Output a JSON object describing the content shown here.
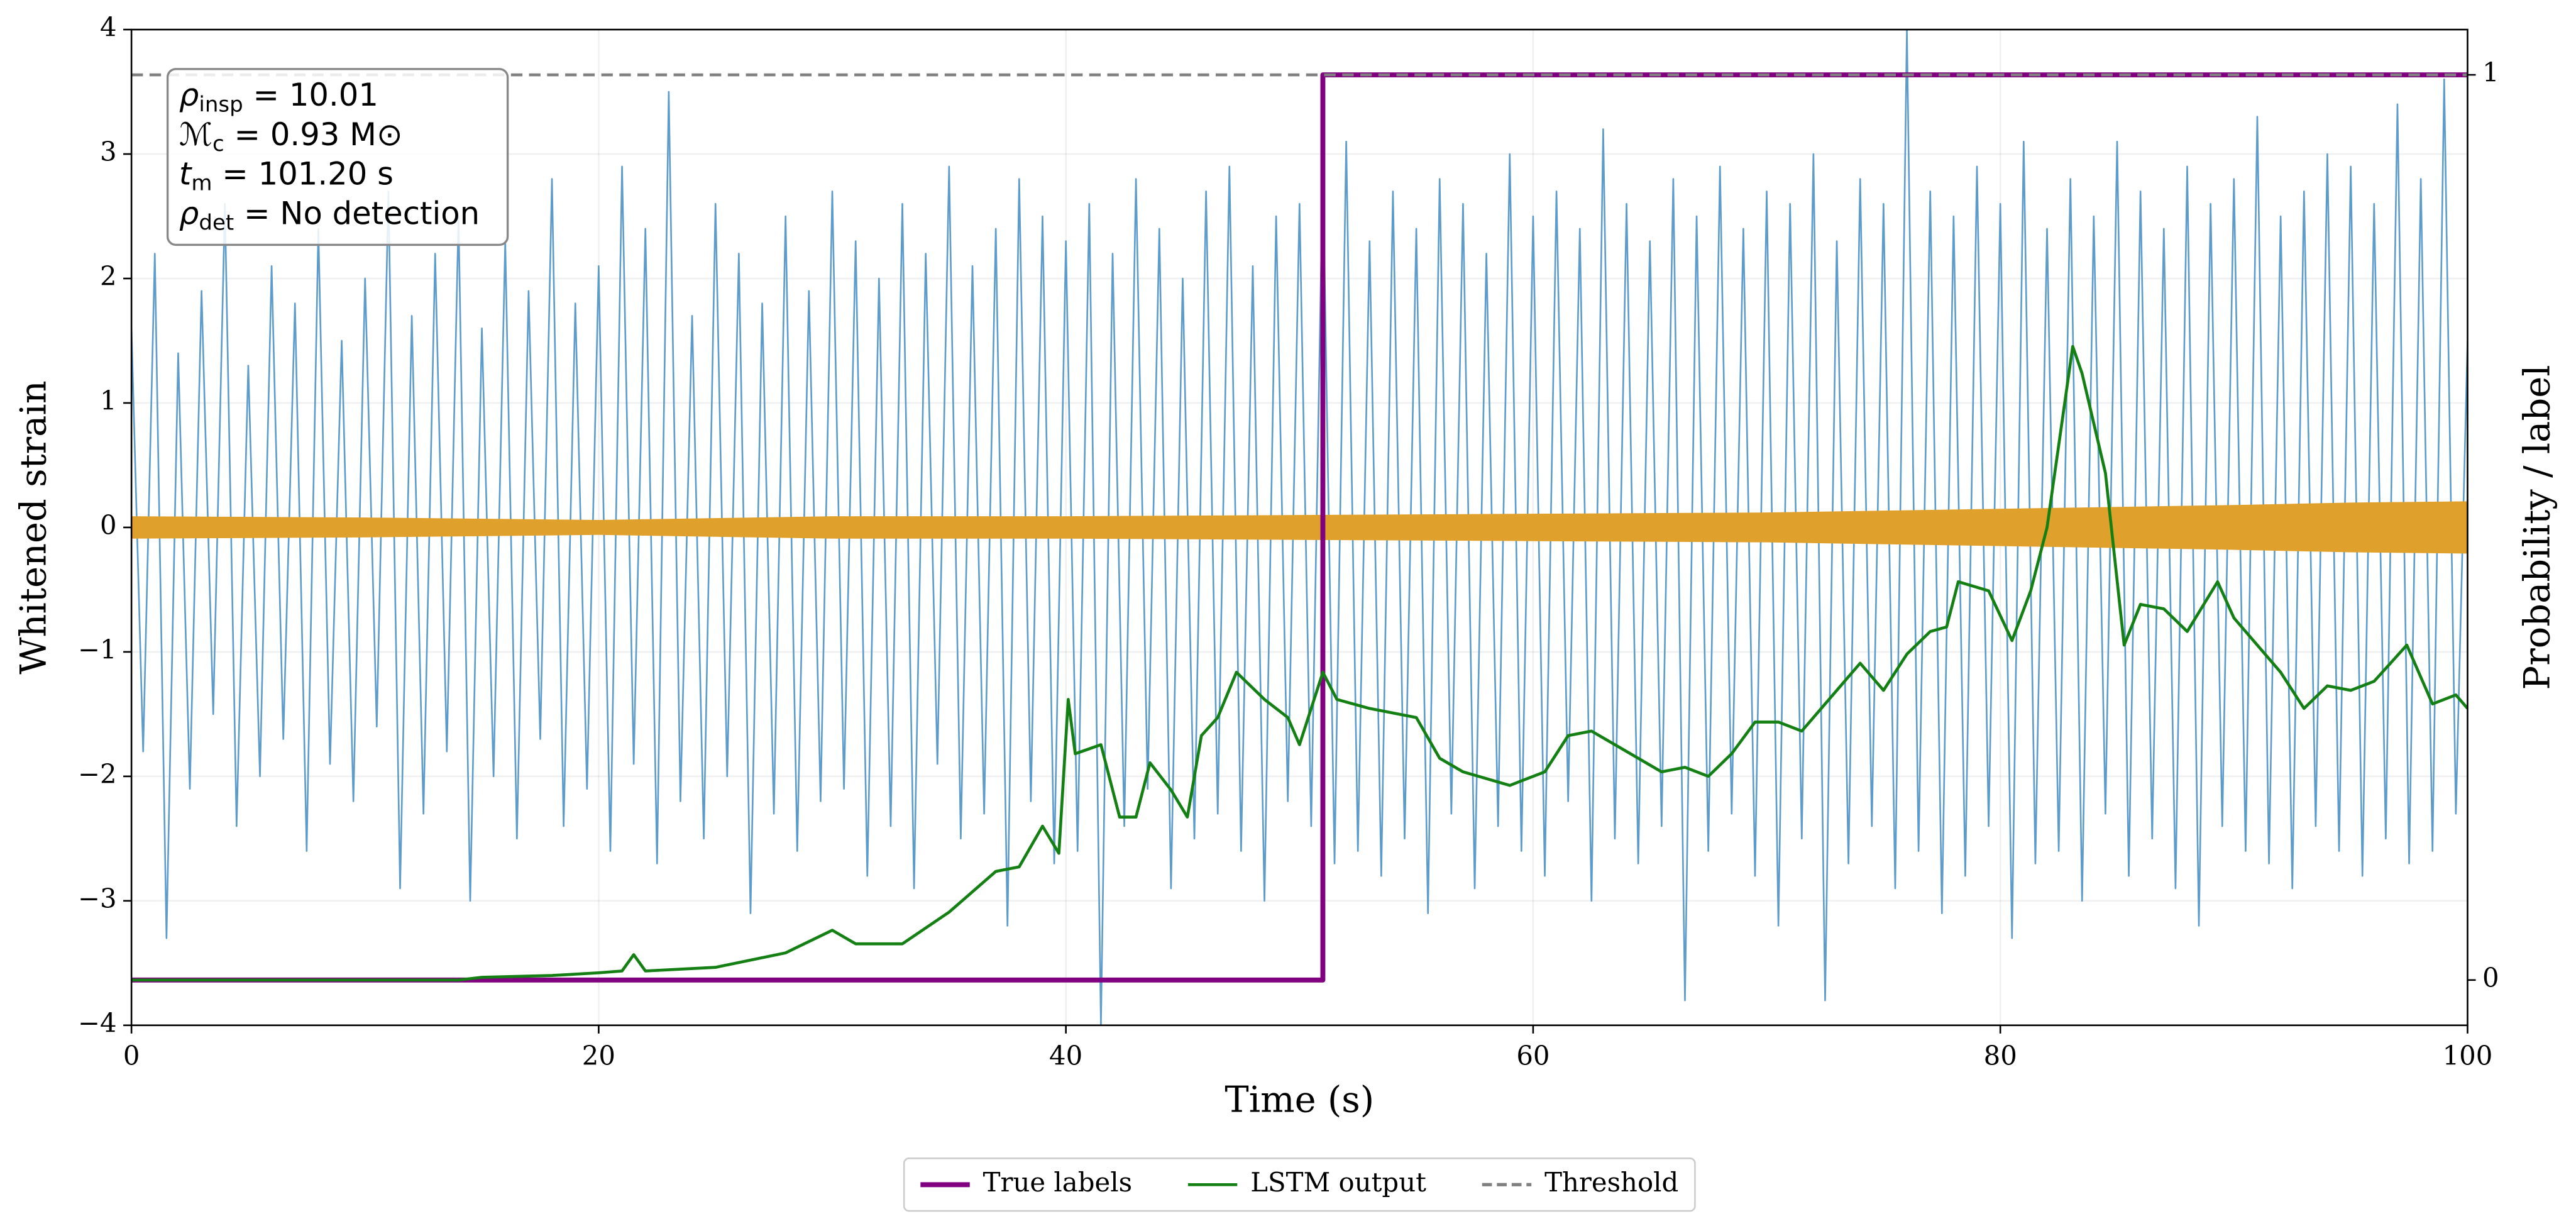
{
  "chart_data": {
    "type": "line",
    "xlabel": "Time (s)",
    "ylabel": "Whitened strain",
    "y2label": "Probability / label",
    "xlim": [
      0,
      100
    ],
    "xticks": [
      0,
      20,
      40,
      60,
      80,
      100
    ],
    "ylim": [
      -4,
      4
    ],
    "yticks": [
      {
        "value": -4,
        "label": "−4"
      },
      {
        "value": -3,
        "label": "−3"
      },
      {
        "value": -2,
        "label": "−2"
      },
      {
        "value": -1,
        "label": "−1"
      },
      0,
      1,
      2,
      3,
      4
    ],
    "y2lim": [
      -0.05,
      1.05
    ],
    "y2ticks": [
      0,
      1
    ],
    "grid": true,
    "legend": "lower center outside",
    "annotation": [
      {
        "main": "ρ",
        "sub": "insp",
        "rest": " = 10.01"
      },
      {
        "main": "ℳ",
        "sub": "c",
        "rest": " = 0.93 M⊙"
      },
      {
        "main": "t",
        "sub": "m",
        "rest": " = 101.20 s"
      },
      {
        "main": "ρ",
        "sub": "det",
        "rest": " = No detection"
      }
    ],
    "series": [
      {
        "style": "line",
        "color": "#5497c7",
        "x": [
          0,
          0.5,
          1,
          1.5,
          2,
          2.5,
          3,
          3.5,
          4,
          4.5,
          5,
          5.5,
          6,
          6.5,
          7,
          7.5,
          8,
          8.5,
          9,
          9.5,
          10,
          10.5,
          11,
          11.5,
          12,
          12.5,
          13,
          13.5,
          14,
          14.5,
          15,
          15.5,
          16,
          16.5,
          17,
          17.5,
          18,
          18.5,
          19,
          19.5,
          20,
          20.5,
          21,
          21.5,
          22,
          22.5,
          23,
          23.5,
          24,
          24.5,
          25,
          25.5,
          26,
          26.5,
          27,
          27.5,
          28,
          28.5,
          29,
          29.5,
          30,
          30.5,
          31,
          31.5,
          32,
          32.5,
          33,
          33.5,
          34,
          34.5,
          35,
          35.5,
          36,
          36.5,
          37,
          37.5,
          38,
          38.5,
          39,
          39.5,
          40,
          40.5,
          41,
          41.5,
          42,
          42.5,
          43,
          43.5,
          44,
          44.5,
          45,
          45.5,
          46,
          46.5,
          47,
          47.5,
          48,
          48.5,
          49,
          49.5,
          50,
          50.5,
          51,
          51.5,
          52,
          52.5,
          53,
          53.5,
          54,
          54.5,
          55,
          55.5,
          56,
          56.5,
          57,
          57.5,
          58,
          58.5,
          59,
          59.5,
          60,
          60.5,
          61,
          61.5,
          62,
          62.5,
          63,
          63.5,
          64,
          64.5,
          65,
          65.5,
          66,
          66.5,
          67,
          67.5,
          68,
          68.5,
          69,
          69.5,
          70,
          70.5,
          71,
          71.5,
          72,
          72.5,
          73,
          73.5,
          74,
          74.5,
          75,
          75.5,
          76,
          76.5,
          77,
          77.5,
          78,
          78.5,
          79,
          79.5,
          80,
          80.5,
          81,
          81.5,
          82,
          82.5,
          83,
          83.5,
          84,
          84.5,
          85,
          85.5,
          86,
          86.5,
          87,
          87.5,
          88,
          88.5,
          89,
          89.5,
          90,
          90.5,
          91,
          91.5,
          92,
          92.5,
          93,
          93.5,
          94,
          94.5,
          95,
          95.5,
          96,
          96.5,
          97,
          97.5,
          98,
          98.5,
          99,
          99.5,
          100
        ],
        "values": [
          1.6,
          -1.8,
          2.2,
          -3.3,
          1.4,
          -2.1,
          1.9,
          -1.5,
          2.6,
          -2.4,
          1.3,
          -2.0,
          2.1,
          -1.7,
          1.8,
          -2.6,
          2.4,
          -1.9,
          1.5,
          -2.2,
          2.0,
          -1.6,
          2.7,
          -2.9,
          1.7,
          -2.3,
          2.2,
          -1.8,
          2.5,
          -3.0,
          1.6,
          -2.0,
          2.3,
          -2.5,
          1.9,
          -1.7,
          2.8,
          -2.4,
          1.8,
          -2.1,
          2.1,
          -2.6,
          2.9,
          -1.9,
          2.4,
          -2.7,
          3.5,
          -2.2,
          1.7,
          -2.5,
          2.6,
          -2.0,
          2.2,
          -3.1,
          1.8,
          -2.3,
          2.5,
          -2.6,
          1.9,
          -2.2,
          2.7,
          -2.1,
          2.3,
          -2.8,
          2.0,
          -2.4,
          2.6,
          -2.9,
          2.2,
          -1.9,
          2.9,
          -2.5,
          2.1,
          -2.3,
          2.4,
          -3.2,
          2.8,
          -2.2,
          2.5,
          -2.7,
          2.3,
          -2.6,
          2.6,
          -4.0,
          2.2,
          -2.4,
          2.8,
          -2.1,
          2.4,
          -2.9,
          2.0,
          -2.5,
          2.7,
          -2.3,
          2.9,
          -2.6,
          2.1,
          -3.0,
          2.5,
          -2.2,
          2.6,
          -2.4,
          2.9,
          -2.7,
          3.1,
          -2.6,
          2.3,
          -2.8,
          2.7,
          -2.5,
          2.4,
          -3.1,
          2.8,
          -2.3,
          2.6,
          -2.9,
          2.2,
          -2.4,
          3.0,
          -2.6,
          2.5,
          -2.8,
          2.7,
          -2.2,
          2.4,
          -3.0,
          3.2,
          -2.5,
          2.6,
          -2.7,
          2.3,
          -2.4,
          2.8,
          -3.8,
          2.5,
          -2.6,
          2.9,
          -2.3,
          2.4,
          -2.8,
          2.7,
          -3.2,
          2.6,
          -2.5,
          3.0,
          -3.8,
          2.3,
          -2.7,
          2.8,
          -2.4,
          2.6,
          -2.9,
          4.0,
          -2.6,
          2.7,
          -3.1,
          2.5,
          -2.8,
          2.9,
          -2.4,
          2.6,
          -3.3,
          3.1,
          -2.7,
          2.4,
          -2.6,
          2.8,
          -3.0,
          2.5,
          -2.3,
          3.1,
          -2.8,
          2.7,
          -2.5,
          2.4,
          -2.9,
          2.9,
          -3.2,
          2.6,
          -2.4,
          2.8,
          -2.6,
          3.3,
          -2.7,
          2.5,
          -2.9,
          2.7,
          -2.4,
          3.0,
          -2.6,
          2.9,
          -2.8,
          2.6,
          -2.5,
          3.4,
          -2.7,
          2.8,
          -2.6,
          3.6,
          -2.3,
          1.5
        ]
      },
      {
        "style": "area",
        "color": "#e0a02c",
        "x": [
          0,
          10,
          20,
          30,
          40,
          50,
          60,
          70,
          80,
          90,
          95,
          100
        ],
        "upper": [
          0.09,
          0.08,
          0.06,
          0.09,
          0.09,
          0.1,
          0.11,
          0.12,
          0.15,
          0.18,
          0.2,
          0.21
        ],
        "lower": [
          -0.09,
          -0.08,
          -0.06,
          -0.09,
          -0.09,
          -0.1,
          -0.11,
          -0.12,
          -0.15,
          -0.18,
          -0.2,
          -0.21
        ]
      },
      {
        "name": "True labels",
        "style": "line",
        "color": "#800080",
        "axis": "y2",
        "x": [
          0,
          51,
          51,
          100
        ],
        "values": [
          0,
          0,
          1,
          1
        ]
      },
      {
        "name": "LSTM output",
        "style": "line",
        "color": "#148014",
        "axis": "y2",
        "x": [
          0,
          5,
          10,
          14,
          15,
          18,
          20,
          21,
          21.5,
          22,
          25,
          28,
          30,
          31,
          33,
          35,
          37,
          38,
          39,
          39.7,
          40.1,
          40.4,
          41.5,
          42.3,
          43,
          43.6,
          44.5,
          45.2,
          45.8,
          46.5,
          47.3,
          48.5,
          49.5,
          50,
          51,
          51.6,
          53,
          55,
          56,
          57,
          59,
          60.5,
          61.5,
          62.5,
          63.5,
          64.5,
          65.5,
          66.5,
          67.5,
          68.5,
          69.5,
          70.5,
          71.5,
          73,
          74,
          75,
          76,
          77,
          77.7,
          78.2,
          79.5,
          80.5,
          81.3,
          82,
          83.1,
          83.5,
          84.5,
          85.3,
          86,
          87,
          88,
          89.3,
          90,
          91,
          92,
          93,
          94,
          95,
          96,
          97.4,
          98.5,
          99.5,
          100
        ],
        "values": [
          0,
          0,
          0,
          0,
          0.003,
          0.005,
          0.008,
          0.01,
          0.028,
          0.01,
          0.014,
          0.03,
          0.055,
          0.04,
          0.04,
          0.075,
          0.12,
          0.125,
          0.17,
          0.14,
          0.31,
          0.25,
          0.26,
          0.18,
          0.18,
          0.24,
          0.21,
          0.18,
          0.27,
          0.29,
          0.34,
          0.31,
          0.29,
          0.26,
          0.34,
          0.31,
          0.3,
          0.29,
          0.245,
          0.23,
          0.215,
          0.23,
          0.27,
          0.275,
          0.26,
          0.245,
          0.23,
          0.235,
          0.225,
          0.25,
          0.285,
          0.285,
          0.275,
          0.32,
          0.35,
          0.32,
          0.36,
          0.385,
          0.39,
          0.44,
          0.43,
          0.375,
          0.43,
          0.5,
          0.7,
          0.67,
          0.56,
          0.37,
          0.415,
          0.41,
          0.385,
          0.44,
          0.4,
          0.37,
          0.34,
          0.3,
          0.325,
          0.32,
          0.33,
          0.37,
          0.305,
          0.315,
          0.3
        ]
      },
      {
        "name": "Threshold",
        "style": "dashed",
        "color": "#808080",
        "axis": "y2",
        "x": [
          0,
          100
        ],
        "values": [
          1,
          1
        ]
      }
    ]
  }
}
